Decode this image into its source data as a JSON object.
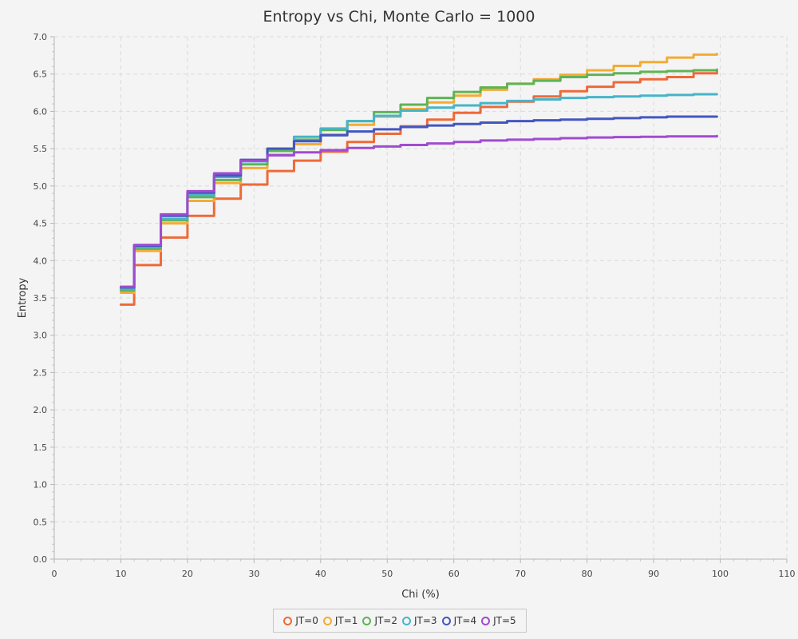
{
  "chart_data": {
    "type": "line",
    "title": "Entropy vs Chi, Monte Carlo = 1000",
    "xlabel": "Chi (%)",
    "ylabel": "Entropy",
    "xlim": [
      0,
      110
    ],
    "ylim": [
      0,
      7
    ],
    "x_ticks": [
      "0",
      "10",
      "20",
      "30",
      "40",
      "50",
      "60",
      "70",
      "80",
      "90",
      "100",
      "110"
    ],
    "y_ticks": [
      "0.0",
      "0.5",
      "1.0",
      "1.5",
      "2.0",
      "2.5",
      "3.0",
      "3.5",
      "4.0",
      "4.5",
      "5.0",
      "5.5",
      "6.0",
      "6.5",
      "7.0"
    ],
    "grid": true,
    "legend_position": "bottom-center",
    "x": [
      10,
      12,
      16,
      20,
      24,
      28,
      32,
      36,
      40,
      44,
      48,
      52,
      56,
      60,
      64,
      68,
      72,
      76,
      80,
      84,
      88,
      92,
      96,
      99.5
    ],
    "series": [
      {
        "name": "JT=0",
        "color": "#ee6a38",
        "values": [
          3.41,
          3.94,
          4.31,
          4.6,
          4.83,
          5.02,
          5.2,
          5.34,
          5.46,
          5.59,
          5.7,
          5.8,
          5.89,
          5.98,
          6.06,
          6.13,
          6.2,
          6.27,
          6.33,
          6.39,
          6.43,
          6.46,
          6.51,
          6.55
        ]
      },
      {
        "name": "JT=1",
        "color": "#f5ab35",
        "values": [
          3.57,
          4.13,
          4.5,
          4.8,
          5.04,
          5.24,
          5.42,
          5.56,
          5.69,
          5.82,
          5.93,
          6.03,
          6.12,
          6.21,
          6.29,
          6.37,
          6.43,
          6.49,
          6.55,
          6.61,
          6.66,
          6.72,
          6.76,
          6.77
        ]
      },
      {
        "name": "JT=2",
        "color": "#5fb356",
        "values": [
          3.6,
          4.16,
          4.54,
          4.85,
          5.08,
          5.29,
          5.47,
          5.62,
          5.75,
          5.87,
          5.99,
          6.09,
          6.18,
          6.26,
          6.32,
          6.37,
          6.41,
          6.46,
          6.49,
          6.51,
          6.53,
          6.54,
          6.55,
          6.56
        ]
      },
      {
        "name": "JT=3",
        "color": "#47b4c9",
        "values": [
          3.62,
          4.18,
          4.56,
          4.88,
          5.12,
          5.33,
          5.5,
          5.66,
          5.77,
          5.87,
          5.94,
          6.01,
          6.05,
          6.08,
          6.11,
          6.14,
          6.16,
          6.18,
          6.19,
          6.2,
          6.21,
          6.22,
          6.23,
          6.23
        ]
      },
      {
        "name": "JT=4",
        "color": "#4357c1",
        "values": [
          3.64,
          4.2,
          4.6,
          4.91,
          5.14,
          5.35,
          5.5,
          5.6,
          5.68,
          5.73,
          5.76,
          5.79,
          5.81,
          5.83,
          5.85,
          5.87,
          5.88,
          5.89,
          5.9,
          5.91,
          5.92,
          5.93,
          5.93,
          5.93
        ]
      },
      {
        "name": "JT=5",
        "color": "#a14bd1",
        "values": [
          3.65,
          4.21,
          4.62,
          4.93,
          5.17,
          5.34,
          5.41,
          5.45,
          5.48,
          5.51,
          5.53,
          5.55,
          5.57,
          5.59,
          5.61,
          5.62,
          5.63,
          5.64,
          5.65,
          5.655,
          5.66,
          5.665,
          5.665,
          5.67
        ]
      }
    ]
  }
}
